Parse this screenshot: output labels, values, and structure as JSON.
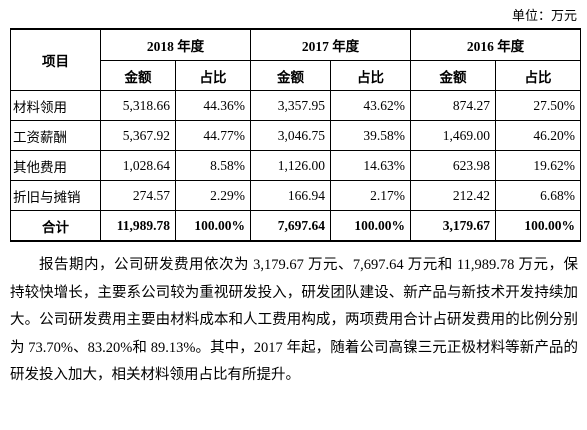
{
  "unit": "单位：万元",
  "table": {
    "item_header": "项目",
    "columns": [
      {
        "year": "2018 年度",
        "amount": "金额",
        "share": "占比"
      },
      {
        "year": "2017 年度",
        "amount": "金额",
        "share": "占比"
      },
      {
        "year": "2016 年度",
        "amount": "金额",
        "share": "占比"
      }
    ],
    "rows": [
      [
        "材料领用",
        "5,318.66",
        "44.36%",
        "3,357.95",
        "43.62%",
        "874.27",
        "27.50%"
      ],
      [
        "工资薪酬",
        "5,367.92",
        "44.77%",
        "3,046.75",
        "39.58%",
        "1,469.00",
        "46.20%"
      ],
      [
        "其他费用",
        "1,028.64",
        "8.58%",
        "1,126.00",
        "14.63%",
        "623.98",
        "19.62%"
      ],
      [
        "折旧与摊销",
        "274.57",
        "2.29%",
        "166.94",
        "2.17%",
        "212.42",
        "6.68%"
      ]
    ],
    "total": [
      "合计",
      "11,989.78",
      "100.00%",
      "7,697.64",
      "100.00%",
      "3,179.67",
      "100.00%"
    ]
  },
  "paragraph": "报告期内，公司研发费用依次为 3,179.67 万元、7,697.64 万元和 11,989.78 万元，保持较快增长，主要系公司较为重视研发投入，研发团队建设、新产品与新技术开发持续加大。公司研发费用主要由材料成本和人工费用构成，两项费用合计占研发费用的比例分别为 73.70%、83.20%和 89.13%。其中，2017 年起，随着公司高镍三元正极材料等新产品的研发投入加大，相关材料领用占比有所提升。"
}
